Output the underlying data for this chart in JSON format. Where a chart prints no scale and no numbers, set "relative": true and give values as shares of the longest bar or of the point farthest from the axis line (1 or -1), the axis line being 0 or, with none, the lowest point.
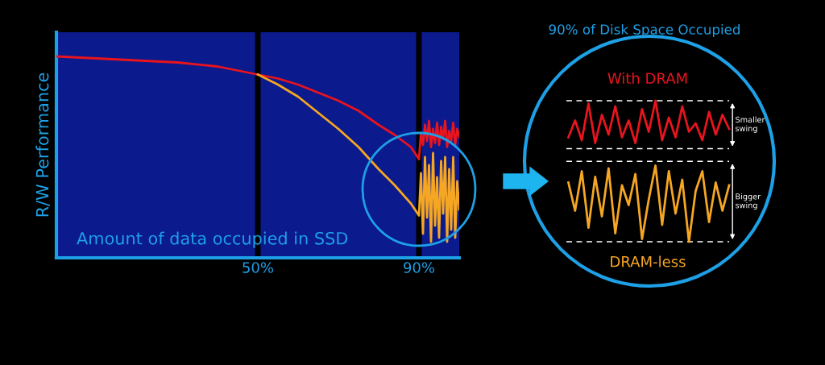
{
  "chart_data": [
    {
      "type": "line",
      "relative": true,
      "ylabel": "R/W Performance",
      "xlabel": "Amount of data occupied in SSD",
      "xlim": [
        0,
        100
      ],
      "xticks": [
        {
          "value": 50,
          "label": "50%"
        },
        {
          "value": 90,
          "label": "90%"
        }
      ],
      "tick_labels": "x",
      "grid": false,
      "legend": false,
      "marker": "none",
      "line_style": "solid",
      "ref_lines": [
        {
          "axis": "x",
          "value": 50,
          "color": "#000000"
        },
        {
          "axis": "x",
          "value": 90,
          "color": "#000000"
        }
      ],
      "series": [
        {
          "color": "#e8141e",
          "x": [
            0,
            10,
            20,
            30,
            40,
            50,
            55,
            60,
            65,
            70,
            75,
            80,
            84,
            88,
            90,
            90.5,
            91,
            91.5,
            92,
            92.5,
            93,
            93.5,
            94,
            94.5,
            95,
            95.5,
            96,
            96.5,
            97,
            97.5,
            98,
            98.5,
            99,
            99.5,
            100
          ],
          "values": [
            1.0,
            0.99,
            0.98,
            0.97,
            0.95,
            0.91,
            0.89,
            0.86,
            0.82,
            0.78,
            0.73,
            0.66,
            0.61,
            0.55,
            0.49,
            0.62,
            0.56,
            0.66,
            0.58,
            0.68,
            0.55,
            0.64,
            0.57,
            0.67,
            0.56,
            0.65,
            0.59,
            0.68,
            0.55,
            0.63,
            0.58,
            0.67,
            0.56,
            0.64,
            0.6
          ]
        },
        {
          "color": "#f5a623",
          "x": [
            50,
            55,
            60,
            65,
            70,
            75,
            80,
            84,
            88,
            90,
            90.5,
            91,
            91.5,
            92,
            92.5,
            93,
            93.5,
            94,
            94.5,
            95,
            95.5,
            96,
            96.5,
            97,
            97.5,
            98,
            98.5,
            99,
            99.5,
            100
          ],
          "values": [
            0.91,
            0.86,
            0.8,
            0.72,
            0.64,
            0.55,
            0.44,
            0.36,
            0.27,
            0.21,
            0.42,
            0.12,
            0.5,
            0.2,
            0.46,
            0.08,
            0.52,
            0.16,
            0.4,
            0.1,
            0.48,
            0.22,
            0.5,
            0.08,
            0.44,
            0.14,
            0.5,
            0.1,
            0.38,
            0.24
          ]
        }
      ]
    },
    {
      "type": "line",
      "relative": true,
      "title": "90% of Disk Space Occupied",
      "legend": false,
      "grid": false,
      "tick_labels": false,
      "marker": "none",
      "line_style": "solid",
      "categories": [
        null,
        null,
        null,
        null,
        null,
        null,
        null,
        null,
        null,
        null,
        null,
        null,
        null,
        null,
        null,
        null,
        null,
        null,
        null,
        null,
        null,
        null,
        null,
        null,
        null
      ],
      "ref_lines": [
        {
          "axis": "y",
          "value": 1.0,
          "color": "#ffffff",
          "line_style": "dashed"
        },
        {
          "axis": "y",
          "value": 0.66,
          "color": "#ffffff",
          "line_style": "dashed"
        },
        {
          "axis": "y",
          "value": 0.57,
          "color": "#ffffff",
          "line_style": "dashed"
        },
        {
          "axis": "y",
          "value": 0,
          "color": "#ffffff",
          "line_style": "dashed"
        }
      ],
      "annotations": [
        "Smaller swing",
        "Bigger swing"
      ],
      "series": [
        {
          "name": "With DRAM",
          "color": "#e8141e",
          "values": [
            0.74,
            0.86,
            0.72,
            0.98,
            0.7,
            0.9,
            0.76,
            0.96,
            0.74,
            0.86,
            0.7,
            0.94,
            0.78,
            1.0,
            0.72,
            0.88,
            0.74,
            0.96,
            0.78,
            0.84,
            0.72,
            0.92,
            0.76,
            0.9,
            0.8
          ]
        },
        {
          "name": "DRAM-less",
          "color": "#f5a623",
          "values": [
            0.42,
            0.22,
            0.5,
            0.1,
            0.46,
            0.18,
            0.52,
            0.06,
            0.4,
            0.26,
            0.48,
            0.02,
            0.3,
            0.54,
            0.12,
            0.5,
            0.2,
            0.44,
            0.0,
            0.36,
            0.5,
            0.14,
            0.42,
            0.22,
            0.4
          ]
        }
      ]
    }
  ]
}
